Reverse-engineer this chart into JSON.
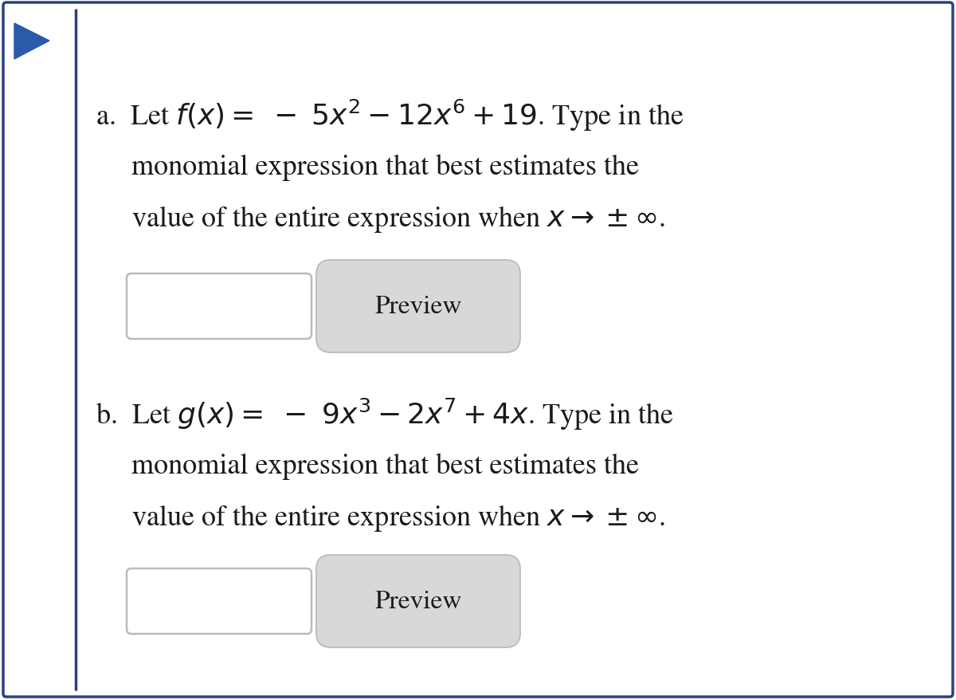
{
  "bg_color": "#ffffff",
  "border_color": "#2a4080",
  "triangle_color": "#2a5aaa",
  "text_color": "#1a1a1a",
  "preview_text": "Preview",
  "font_size_main": 26,
  "font_size_preview": 24,
  "input_box_facecolor": "#ffffff",
  "input_box_edgecolor": "#bbbbbb",
  "preview_box_facecolor": "#d8d8d8",
  "preview_box_edgecolor": "#bbbbbb",
  "figw": 12.0,
  "figh": 8.79,
  "dpi": 100
}
